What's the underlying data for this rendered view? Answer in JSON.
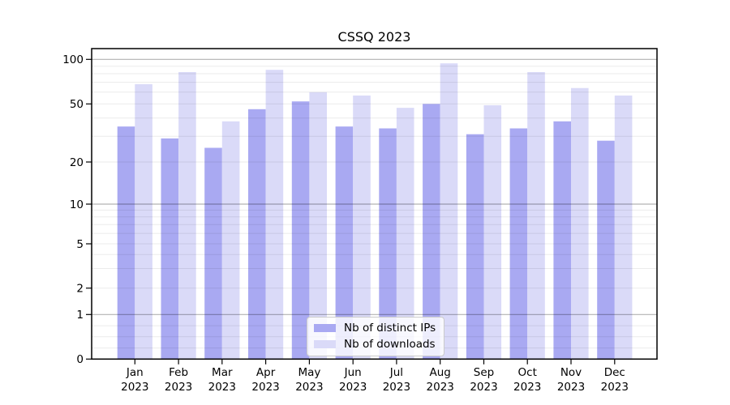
{
  "chart_data": {
    "type": "bar",
    "title": "CSSQ 2023",
    "xlabel": "",
    "ylabel": "",
    "scale": "symlog",
    "grid": true,
    "legend_position": "lower center",
    "ylim": [
      0,
      118
    ],
    "yticks": [
      0,
      1,
      2,
      5,
      10,
      20,
      50,
      100
    ],
    "categories": [
      "Jan",
      "Feb",
      "Mar",
      "Apr",
      "May",
      "Jun",
      "Jul",
      "Aug",
      "Sep",
      "Oct",
      "Nov",
      "Dec"
    ],
    "category_year": "2023",
    "series": [
      {
        "name": "Nb of distinct IPs",
        "color": "#a9a9f2",
        "values": [
          35,
          29,
          25,
          46,
          52,
          35,
          34,
          50,
          31,
          34,
          38,
          28
        ]
      },
      {
        "name": "Nb of downloads",
        "color": "#dadaf8",
        "values": [
          68,
          82,
          38,
          85,
          60,
          57,
          47,
          94,
          49,
          82,
          64,
          57
        ]
      }
    ]
  }
}
